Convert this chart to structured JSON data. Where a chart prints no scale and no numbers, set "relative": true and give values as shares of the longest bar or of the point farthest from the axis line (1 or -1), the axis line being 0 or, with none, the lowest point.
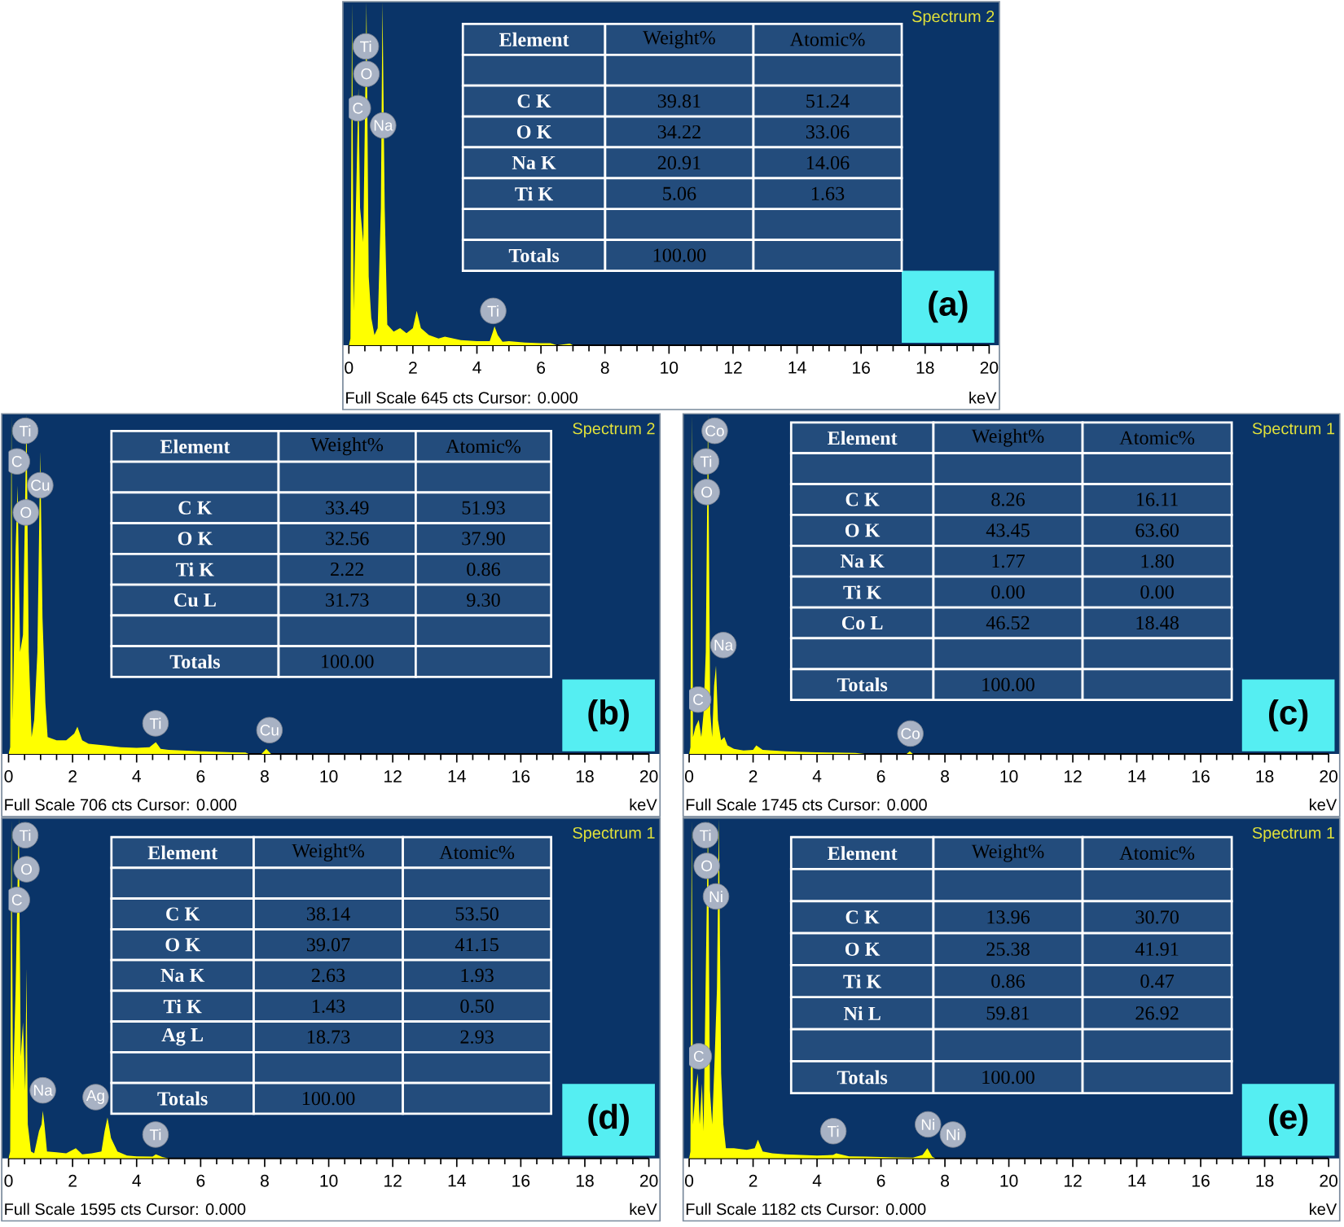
{
  "chart_data": [
    {
      "type": "area",
      "title": "Spectrum 2",
      "xlabel": "keV",
      "color": "#ffff00",
      "relative": true,
      "xlim": [
        0,
        20
      ],
      "xticks": [
        0,
        2,
        4,
        6,
        8,
        10,
        12,
        14,
        16,
        18,
        20
      ],
      "x": [
        0,
        0.05,
        0.1,
        0.15,
        0.25,
        0.3,
        0.35,
        0.45,
        0.55,
        0.62,
        0.7,
        0.8,
        0.9,
        1.0,
        1.05,
        1.12,
        1.2,
        1.4,
        1.6,
        1.8,
        2.0,
        2.12,
        2.25,
        2.5,
        2.8,
        3.0,
        3.5,
        4.0,
        4.4,
        4.5,
        4.55,
        4.65,
        4.8,
        5.0,
        5.5,
        6.0,
        6.3,
        6.5,
        6.9,
        7.0
      ],
      "values": [
        0,
        0.02,
        1,
        0.1,
        null,
        0.75,
        0.4,
        0.3,
        1,
        0.2,
        0.08,
        0.03,
        0.05,
        0.4,
        1,
        0.4,
        0.06,
        0.04,
        0.05,
        0.035,
        0.05,
        0.1,
        0.05,
        0.03,
        0.02,
        0.025,
        0.015,
        0.012,
        0.012,
        0.04,
        0.055,
        0.03,
        0.01,
        0.012,
        0.008,
        0.006,
        0.006,
        0,
        0.005,
        0
      ],
      "annotations": [
        "(a)",
        "Full Scale 645 cts Cursor: 0.000",
        {
          "text": "Ti",
          "x": 0.53,
          "y": 0.87
        },
        {
          "text": "O",
          "x": 0.55,
          "y": 0.79
        },
        {
          "text": "C",
          "x": 0.28,
          "y": 0.69
        },
        {
          "text": "Na",
          "x": 1.07,
          "y": 0.64
        },
        {
          "text": "Ti",
          "x": 4.51,
          "y": 0.1
        }
      ]
    },
    {
      "type": "other",
      "xlabel": "Element",
      "categories": [
        "C K",
        "O K",
        "Na K",
        "Ti K",
        "Totals"
      ],
      "series": [
        {
          "name": "Weight%",
          "values": [
            39.81,
            34.22,
            20.91,
            5.06,
            100.0
          ],
          "value_labels": [
            "39.81",
            "34.22",
            "20.91",
            "5.06",
            "100.00"
          ]
        },
        {
          "name": "Atomic%",
          "values": [
            51.24,
            33.06,
            14.06,
            1.63,
            null
          ],
          "value_labels": [
            "51.24",
            "33.06",
            "14.06",
            "1.63",
            null
          ]
        }
      ]
    },
    {
      "type": "area",
      "title": "Spectrum 2",
      "xlabel": "keV",
      "color": "#ffff00",
      "relative": true,
      "xlim": [
        0,
        20
      ],
      "xticks": [
        0,
        2,
        4,
        6,
        8,
        10,
        12,
        14,
        16,
        18,
        20
      ],
      "x": [
        0,
        0.05,
        0.09,
        0.13,
        0.22,
        0.28,
        0.36,
        0.45,
        0.56,
        0.63,
        0.72,
        0.8,
        0.9,
        0.99,
        1.06,
        1.15,
        1.22,
        1.5,
        1.8,
        2.05,
        2.15,
        2.3,
        2.5,
        3.0,
        3.5,
        4.0,
        4.4,
        4.6,
        4.75,
        5.0,
        6.0,
        7.0,
        7.4,
        7.5,
        7.9,
        8.05,
        8.2
      ],
      "values": [
        0,
        0.02,
        1,
        0.1,
        0.6,
        0.79,
        0.3,
        0.35,
        1,
        0.3,
        0.05,
        0.1,
        0.3,
        0.89,
        0.4,
        0.15,
        0.05,
        0.04,
        0.04,
        0.06,
        0.08,
        0.04,
        0.03,
        0.025,
        0.02,
        0.018,
        0.02,
        0.035,
        0.015,
        0.012,
        0.008,
        0.005,
        0.004,
        0,
        0,
        0.015,
        0
      ],
      "annotations": [
        "(b)",
        "Full Scale 706 cts Cursor: 0.000",
        {
          "text": "Ti",
          "x": 0.52,
          "y": 0.95
        },
        {
          "text": "C",
          "x": 0.26,
          "y": 0.86
        },
        {
          "text": "Cu",
          "x": 0.99,
          "y": 0.79
        },
        {
          "text": "O",
          "x": 0.54,
          "y": 0.71
        },
        {
          "text": "Ti",
          "x": 4.59,
          "y": 0.09
        },
        {
          "text": "Cu",
          "x": 8.15,
          "y": 0.07
        }
      ]
    },
    {
      "type": "other",
      "xlabel": "Element",
      "categories": [
        "C K",
        "O K",
        "Ti K",
        "Cu L",
        "Totals"
      ],
      "series": [
        {
          "name": "Weight%",
          "values": [
            33.49,
            32.56,
            2.22,
            31.73,
            100.0
          ],
          "value_labels": [
            "33.49",
            "32.56",
            "2.22",
            "31.73",
            "100.00"
          ]
        },
        {
          "name": "Atomic%",
          "values": [
            51.93,
            37.9,
            0.86,
            9.3,
            null
          ],
          "value_labels": [
            "51.93",
            "37.90",
            "0.86",
            "9.30",
            null
          ]
        }
      ]
    },
    {
      "type": "area",
      "title": "Spectrum 1",
      "xlabel": "keV",
      "color": "#ffff00",
      "relative": true,
      "xlim": [
        0,
        20
      ],
      "xticks": [
        0,
        2,
        4,
        6,
        8,
        10,
        12,
        14,
        16,
        18,
        20
      ],
      "x": [
        0,
        0.04,
        0.08,
        0.12,
        0.2,
        0.3,
        0.38,
        0.45,
        0.52,
        0.59,
        0.66,
        0.72,
        0.78,
        0.84,
        0.9,
        1.0,
        1.1,
        1.2,
        1.4,
        1.7,
        2.0,
        2.1,
        2.3,
        2.6,
        3.0,
        3.5,
        4.0,
        4.5,
        5.2,
        5.5,
        6.8,
        6.9,
        7.0
      ],
      "values": [
        0,
        0.02,
        1,
        0.05,
        0.08,
        0.1,
        0.05,
        0.12,
        0.3,
        1,
        0.12,
        0.05,
        0.2,
        0.26,
        0.1,
        0.04,
        0.05,
        0.025,
        0.015,
        0.01,
        0.012,
        0.025,
        0.012,
        0.01,
        0.008,
        0.006,
        0.005,
        0.004,
        0.003,
        0,
        0,
        0.008,
        0
      ],
      "annotations": [
        "(c)",
        "Full Scale 1745 cts Cursor: 0.000",
        {
          "text": "Co",
          "x": 0.8,
          "y": 0.95
        },
        {
          "text": "Ti",
          "x": 0.53,
          "y": 0.86
        },
        {
          "text": "O",
          "x": 0.55,
          "y": 0.77
        },
        {
          "text": "Na",
          "x": 1.07,
          "y": 0.32
        },
        {
          "text": "C",
          "x": 0.28,
          "y": 0.16
        },
        {
          "text": "Co",
          "x": 6.92,
          "y": 0.06
        }
      ]
    },
    {
      "type": "other",
      "xlabel": "Element",
      "categories": [
        "C K",
        "O K",
        "Na K",
        "Ti K",
        "Co L",
        "Totals"
      ],
      "series": [
        {
          "name": "Weight%",
          "values": [
            8.26,
            43.45,
            1.77,
            0.0,
            46.52,
            100.0
          ],
          "value_labels": [
            "8.26",
            "43.45",
            "1.77",
            "0.00",
            "46.52",
            "100.00"
          ]
        },
        {
          "name": "Atomic%",
          "values": [
            16.11,
            63.6,
            1.8,
            0.0,
            18.48,
            null
          ],
          "value_labels": [
            "16.11",
            "63.60",
            "1.80",
            "0.00",
            "18.48",
            null
          ]
        }
      ]
    },
    {
      "type": "area",
      "title": "Spectrum 1",
      "xlabel": "keV",
      "color": "#ffff00",
      "relative": true,
      "xlim": [
        0,
        20
      ],
      "xticks": [
        0,
        2,
        4,
        6,
        8,
        10,
        12,
        14,
        16,
        18,
        20
      ],
      "x": [
        0,
        0.05,
        0.09,
        0.14,
        0.22,
        0.28,
        0.32,
        0.38,
        0.45,
        0.52,
        0.56,
        0.6,
        0.7,
        0.8,
        0.95,
        1.03,
        1.07,
        1.12,
        1.2,
        1.5,
        1.8,
        2.1,
        2.3,
        2.6,
        2.9,
        3.0,
        3.09,
        3.2,
        3.4,
        3.7,
        4.0,
        4.5,
        4.6,
        4.8,
        5.0
      ],
      "values": [
        0,
        0.02,
        1,
        0.2,
        0.5,
        0.8,
        1,
        0.3,
        0.4,
        0.2,
        0.56,
        0.1,
        0.02,
        0.015,
        0.08,
        0.1,
        0.14,
        0.1,
        0.02,
        0.018,
        0.015,
        0.03,
        0.012,
        0.015,
        0.02,
        0.08,
        0.12,
        0.06,
        0.02,
        0.008,
        0.006,
        0.005,
        0.012,
        0.004,
        0
      ],
      "annotations": [
        "(d)",
        "Full Scale 1595 cts Cursor: 0.000",
        {
          "text": "Ti",
          "x": 0.52,
          "y": 0.95
        },
        {
          "text": "O",
          "x": 0.56,
          "y": 0.85
        },
        {
          "text": "C",
          "x": 0.26,
          "y": 0.76
        },
        {
          "text": "Na",
          "x": 1.07,
          "y": 0.2
        },
        {
          "text": "Ag",
          "x": 2.72,
          "y": 0.18
        },
        {
          "text": "Ti",
          "x": 4.59,
          "y": 0.07
        }
      ]
    },
    {
      "type": "other",
      "xlabel": "Element",
      "categories": [
        "C K",
        "O K",
        "Na K",
        "Ti K",
        "Ag L",
        "Totals"
      ],
      "series": [
        {
          "name": "Weight%",
          "values": [
            38.14,
            39.07,
            2.63,
            1.43,
            18.73,
            100.0
          ],
          "value_labels": [
            "38.14",
            "39.07",
            "2.63",
            "1.43",
            "18.73",
            "100.00"
          ]
        },
        {
          "name": "Atomic%",
          "values": [
            53.5,
            41.15,
            1.93,
            0.5,
            2.93,
            null
          ],
          "value_labels": [
            "53.50",
            "41.15",
            "1.93",
            "0.50",
            "2.93",
            null
          ]
        }
      ]
    },
    {
      "type": "area",
      "title": "Spectrum 1",
      "xlabel": "keV",
      "color": "#ffff00",
      "relative": true,
      "xlim": [
        0,
        20
      ],
      "xticks": [
        0,
        2,
        4,
        6,
        8,
        10,
        12,
        14,
        16,
        18,
        20
      ],
      "x": [
        0,
        0.04,
        0.08,
        0.12,
        0.2,
        0.27,
        0.33,
        0.4,
        0.45,
        0.52,
        0.59,
        0.65,
        0.72,
        0.8,
        0.87,
        0.93,
        1.0,
        1.07,
        1.15,
        1.4,
        1.8,
        2.05,
        2.15,
        2.3,
        2.6,
        3.0,
        3.5,
        4.0,
        4.5,
        4.6,
        5.0,
        5.5,
        6.0,
        6.5,
        7.0,
        7.3,
        7.45,
        7.6,
        7.7
      ],
      "values": [
        0,
        0.02,
        1,
        0.1,
        0.2,
        0.25,
        0.1,
        0.22,
        0.08,
        null,
        1,
        0.2,
        0.1,
        0.3,
        0.5,
        1,
        0.25,
        0.1,
        0.03,
        0.03,
        0.025,
        0.03,
        0.055,
        0.02,
        0.015,
        0.012,
        0.01,
        0.008,
        0.01,
        0.015,
        0.006,
        0.005,
        0.004,
        0.003,
        0.002,
        0.01,
        0.03,
        0.005,
        0
      ],
      "annotations": [
        "(e)",
        "Full Scale 1182 cts Cursor: 0.000",
        {
          "text": "Ti",
          "x": 0.51,
          "y": 0.95
        },
        {
          "text": "O",
          "x": 0.55,
          "y": 0.86
        },
        {
          "text": "Ni",
          "x": 0.84,
          "y": 0.77
        },
        {
          "text": "C",
          "x": 0.3,
          "y": 0.3
        },
        {
          "text": "Ti",
          "x": 4.51,
          "y": 0.08
        },
        {
          "text": "Ni",
          "x": 7.47,
          "y": 0.1
        },
        {
          "text": "Ni",
          "x": 8.25,
          "y": 0.07
        }
      ]
    },
    {
      "type": "other",
      "xlabel": "Element",
      "categories": [
        "C K",
        "O K",
        "Ti K",
        "Ni L",
        "Totals"
      ],
      "series": [
        {
          "name": "Weight%",
          "values": [
            13.96,
            25.38,
            0.86,
            59.81,
            100.0
          ],
          "value_labels": [
            "13.96",
            "25.38",
            "0.86",
            "59.81",
            "100.00"
          ]
        },
        {
          "name": "Atomic%",
          "values": [
            30.7,
            41.91,
            0.47,
            26.92,
            null
          ],
          "value_labels": [
            "30.70",
            "41.91",
            "0.47",
            "26.92",
            null
          ]
        }
      ]
    }
  ]
}
